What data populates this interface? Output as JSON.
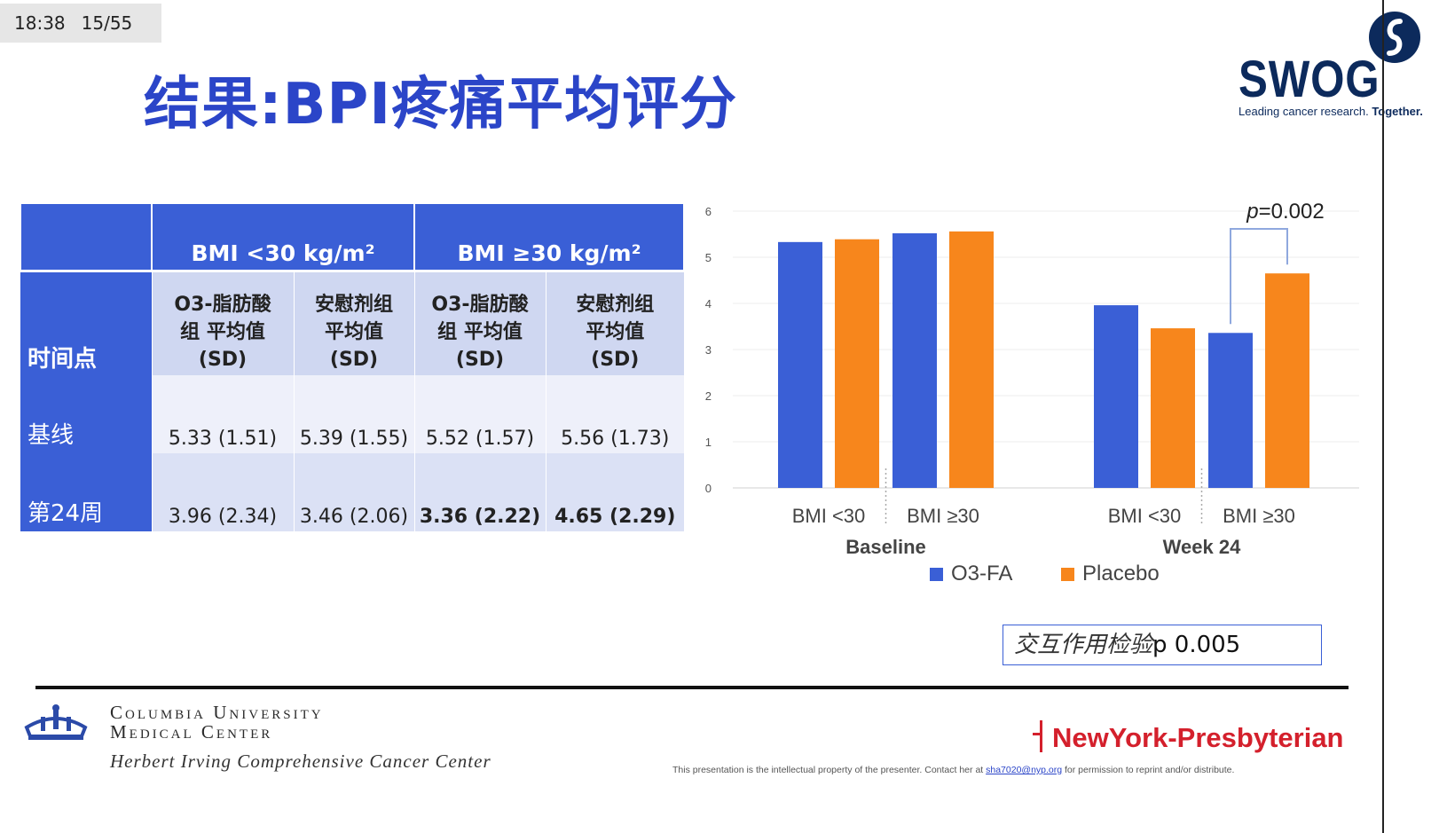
{
  "status": {
    "time": "18:38",
    "slide": "15/55"
  },
  "title": "结果:BPI疼痛平均评分",
  "logo": {
    "name": "SWOG",
    "tagline_light": "Leading cancer research.",
    "tagline_bold": "Together."
  },
  "table": {
    "group_headers": [
      "BMI <30 kg/m²",
      "BMI ≥30 kg/m²"
    ],
    "row_header_label": "时间点",
    "column_headers": [
      [
        "O3-脂肪酸",
        "组 平均值",
        "(SD)"
      ],
      [
        "安慰剂组",
        "平均值",
        "(SD)"
      ],
      [
        "O3-脂肪酸",
        "组 平均值",
        "(SD)"
      ],
      [
        "安慰剂组",
        "平均值",
        "(SD)"
      ]
    ],
    "rows": [
      {
        "label": "基线",
        "cells": [
          "5.33 (1.51)",
          "5.39 (1.55)",
          "5.52 (1.57)",
          "5.56 (1.73)"
        ]
      },
      {
        "label": "第24周",
        "cells": [
          "3.96 (2.34)",
          "3.46 (2.06)",
          "3.36 (2.22)",
          "4.65 (2.29)"
        ]
      }
    ]
  },
  "chart_data": {
    "type": "bar",
    "title": "",
    "xlabel": "",
    "ylabel": "",
    "ylim": [
      0,
      6
    ],
    "yticks": [
      "0",
      "1",
      "2",
      "3",
      "4",
      "5",
      "6"
    ],
    "grid": true,
    "categories": [
      "BMI <30",
      "BMI ≥30",
      "BMI <30",
      "BMI ≥30"
    ],
    "groups": [
      "Baseline",
      "Week 24"
    ],
    "series": [
      {
        "name": "O3-FA",
        "color": "#3a5fd6",
        "values": [
          5.33,
          5.52,
          3.96,
          3.36
        ]
      },
      {
        "name": "Placebo",
        "color": "#f7861c",
        "values": [
          5.39,
          5.56,
          3.46,
          4.65
        ]
      }
    ],
    "annotation": {
      "prefix": "p",
      "text": "=0.002"
    },
    "legend_position": "bottom"
  },
  "interaction": {
    "label": "交互作用检验",
    "value": "p 0.005"
  },
  "footer": {
    "columbia_line1": "Columbia University",
    "columbia_line2": "Medical Center",
    "cancer_center": "Herbert Irving Comprehensive Cancer Center",
    "nyp": "NewYork-Presbyterian",
    "disclaimer_pre": "This presentation is the intellectual property of the presenter. Contact her at",
    "disclaimer_email": "sha7020@nyp.org",
    "disclaimer_post": "for permission to reprint and/or distribute."
  }
}
